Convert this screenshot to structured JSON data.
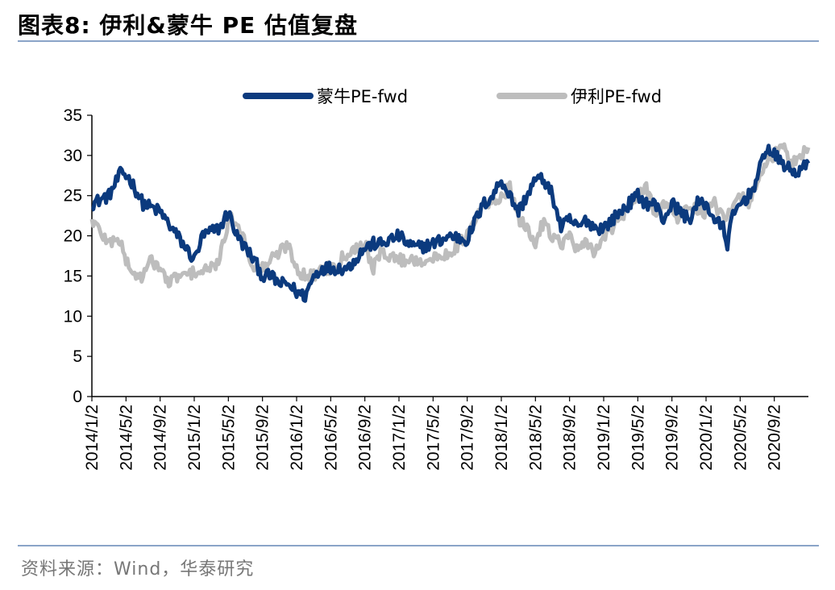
{
  "figure_title": "图表8:  伊利&蒙牛 PE 估值复盘",
  "source": "资料来源：Wind，华泰研究",
  "colors": {
    "mengniu": "#0b3a7e",
    "yili": "#bdbdbd",
    "rule": "#8aa4c8"
  },
  "chart_data": {
    "type": "line",
    "title": "",
    "xlabel": "",
    "ylabel": "",
    "ylim": [
      0,
      35
    ],
    "yticks": [
      "0",
      "5",
      "10",
      "15",
      "20",
      "25",
      "30",
      "35"
    ],
    "xlim": [
      0,
      84
    ],
    "x_tick_labels": [
      "2014/1/2",
      "2014/5/2",
      "2014/9/2",
      "2015/1/2",
      "2015/5/2",
      "2015/9/2",
      "2016/1/2",
      "2016/5/2",
      "2016/9/2",
      "2017/1/2",
      "2017/5/2",
      "2017/9/2",
      "2018/1/2",
      "2018/5/2",
      "2018/9/2",
      "2019/1/2",
      "2019/5/2",
      "2019/9/2",
      "2020/1/2",
      "2020/5/2",
      "2020/9/2"
    ],
    "x_tick_months": [
      0,
      4,
      8,
      12,
      16,
      20,
      24,
      28,
      32,
      36,
      40,
      44,
      48,
      52,
      56,
      60,
      64,
      68,
      72,
      76,
      80
    ],
    "x_unit": "months since 2014/1/2",
    "legend_position": "top-center",
    "series": [
      {
        "name": "蒙牛PE-fwd",
        "x": [
          0,
          2,
          3.5,
          4.5,
          6,
          8,
          10,
          12,
          13,
          15,
          16,
          17,
          19,
          20,
          21,
          22,
          23,
          24,
          25,
          26,
          27,
          28,
          30,
          32,
          33,
          34,
          36,
          37,
          38,
          40,
          42,
          44,
          45,
          46,
          47,
          48,
          49,
          50,
          51,
          52,
          53,
          54,
          55,
          56,
          57,
          58,
          59,
          60,
          61,
          62,
          63,
          64,
          65,
          66,
          67,
          68,
          69,
          70,
          71,
          72,
          73,
          74,
          74.5,
          75,
          76,
          77,
          78,
          79,
          80,
          81,
          82,
          83,
          84
        ],
        "values": [
          24,
          25,
          28,
          27,
          24,
          23,
          20,
          17,
          20,
          21,
          23,
          20,
          17,
          15,
          15,
          14,
          14,
          13,
          12.5,
          15,
          16,
          16,
          16,
          18.5,
          19,
          19,
          20,
          19,
          18.5,
          19,
          20,
          19.5,
          22,
          24,
          25,
          27,
          25,
          23,
          25,
          27,
          27,
          25,
          21,
          22,
          21,
          22,
          21,
          21,
          22,
          23,
          24,
          25,
          24,
          24,
          22,
          24,
          23,
          22,
          24,
          24,
          22,
          21,
          19,
          22,
          24,
          25,
          27,
          31,
          30,
          29,
          28,
          28,
          29
        ]
      },
      {
        "name": "伊利PE-fwd",
        "x": [
          0,
          2,
          3,
          4,
          5,
          6,
          7,
          8,
          9,
          10,
          11,
          12,
          13,
          14,
          15,
          16,
          17,
          18,
          19,
          20,
          21,
          22,
          23,
          24,
          25,
          26,
          27,
          28,
          29,
          30,
          31,
          32,
          33,
          34,
          36,
          38,
          40,
          42,
          44,
          45,
          46,
          47,
          48,
          49,
          50,
          51,
          52,
          53,
          54,
          55,
          56,
          57,
          58,
          59,
          60,
          61,
          62,
          63,
          64,
          65,
          66,
          67,
          68,
          69,
          70,
          71,
          72,
          73,
          74,
          75,
          76,
          77,
          78,
          79,
          80,
          81,
          82,
          83,
          84
        ],
        "values": [
          22,
          19,
          20,
          17,
          15,
          15,
          17,
          16,
          14,
          15,
          15,
          15.5,
          15.5,
          16,
          17,
          22,
          22,
          19,
          16,
          16,
          17,
          18,
          19,
          16,
          15,
          15,
          16,
          16,
          17,
          18,
          18.5,
          19,
          16,
          18,
          17,
          17,
          17,
          18,
          20,
          22,
          24,
          24,
          25,
          26,
          22,
          21,
          19,
          22,
          20,
          19,
          20,
          18,
          19,
          18,
          20,
          21,
          22,
          24,
          25,
          26,
          23,
          24,
          23,
          22,
          24,
          23,
          23,
          24,
          22,
          23,
          25,
          24,
          27,
          29,
          30,
          31,
          29,
          30,
          31
        ]
      }
    ]
  }
}
